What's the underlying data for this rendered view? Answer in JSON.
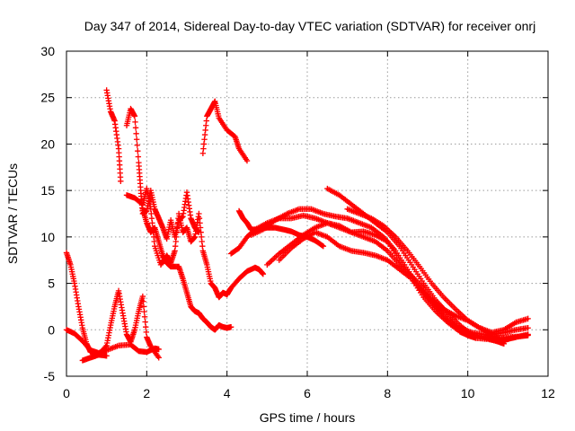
{
  "chart_data": {
    "type": "scatter",
    "title": "Day 347 of 2014, Sidereal Day-to-day VTEC variation (SDTVAR) for receiver onrj",
    "xlabel": "GPS time / hours",
    "ylabel": "SDTVAR / TECUs",
    "xlim": [
      0,
      12
    ],
    "ylim": [
      -5,
      30
    ],
    "xticks": [
      0,
      2,
      4,
      6,
      8,
      10,
      12
    ],
    "yticks": [
      -5,
      0,
      5,
      10,
      15,
      20,
      25,
      30
    ],
    "xtick_labels": [
      "0",
      "2",
      "4",
      "6",
      "8",
      "10",
      "12"
    ],
    "ytick_labels": [
      "-5",
      "0",
      "5",
      "10",
      "15",
      "20",
      "25",
      "30"
    ],
    "grid": true,
    "marker": "+",
    "color": "#ff0000",
    "series": [
      {
        "name": "s1",
        "points": [
          [
            0.0,
            8.3
          ],
          [
            0.1,
            7.0
          ],
          [
            0.2,
            5.0
          ],
          [
            0.3,
            2.5
          ],
          [
            0.4,
            0.2
          ],
          [
            0.5,
            -1.5
          ],
          [
            0.6,
            -2.4
          ],
          [
            0.8,
            -2.7
          ],
          [
            1.0,
            -2.8
          ]
        ]
      },
      {
        "name": "s2",
        "points": [
          [
            0.0,
            0.0
          ],
          [
            0.2,
            -0.4
          ],
          [
            0.4,
            -1.2
          ],
          [
            0.6,
            -2.2
          ],
          [
            0.8,
            -2.5
          ],
          [
            1.0,
            -2.2
          ],
          [
            1.3,
            -1.7
          ],
          [
            1.6,
            -1.6
          ],
          [
            1.8,
            -2.3
          ],
          [
            2.0,
            -2.4
          ],
          [
            2.2,
            -2.0
          ],
          [
            2.3,
            -2.1
          ]
        ]
      },
      {
        "name": "s3",
        "points": [
          [
            0.4,
            -3.3
          ],
          [
            0.6,
            -3.0
          ],
          [
            0.8,
            -2.7
          ],
          [
            1.0,
            -1.7
          ],
          [
            1.1,
            0.5
          ],
          [
            1.2,
            2.5
          ],
          [
            1.3,
            4.2
          ],
          [
            1.4,
            1.8
          ],
          [
            1.5,
            -0.5
          ],
          [
            1.6,
            -1.3
          ],
          [
            1.7,
            0.0
          ],
          [
            1.8,
            2.0
          ],
          [
            1.9,
            3.6
          ],
          [
            2.0,
            -0.8
          ],
          [
            2.1,
            -1.8
          ],
          [
            2.3,
            -3.0
          ]
        ]
      },
      {
        "name": "s4",
        "points": [
          [
            1.0,
            25.8
          ],
          [
            1.1,
            23.5
          ],
          [
            1.2,
            22.5
          ],
          [
            1.3,
            19.5
          ],
          [
            1.35,
            16.0
          ]
        ]
      },
      {
        "name": "s5",
        "points": [
          [
            1.5,
            22.0
          ],
          [
            1.6,
            23.8
          ],
          [
            1.7,
            23.0
          ],
          [
            1.8,
            18.0
          ],
          [
            1.85,
            15.0
          ],
          [
            1.9,
            12.5
          ],
          [
            2.0,
            12.8
          ],
          [
            2.1,
            15.0
          ],
          [
            2.2,
            13.0
          ],
          [
            2.3,
            12.0
          ],
          [
            2.4,
            11.0
          ],
          [
            2.5,
            9.8
          ],
          [
            2.6,
            11.8
          ],
          [
            2.7,
            10.0
          ],
          [
            2.8,
            11.8
          ],
          [
            2.9,
            12.2
          ],
          [
            3.0,
            14.8
          ],
          [
            3.1,
            12.0
          ],
          [
            3.2,
            11.0
          ],
          [
            3.3,
            10.5
          ]
        ]
      },
      {
        "name": "s6",
        "points": [
          [
            1.5,
            14.5
          ],
          [
            1.7,
            14.2
          ],
          [
            1.9,
            13.5
          ],
          [
            2.0,
            15.2
          ],
          [
            2.1,
            13.0
          ],
          [
            2.2,
            9.0
          ],
          [
            2.35,
            7.0
          ],
          [
            2.5,
            8.0
          ],
          [
            2.6,
            7.2
          ],
          [
            2.7,
            8.5
          ],
          [
            2.8,
            12.5
          ],
          [
            2.9,
            10.5
          ],
          [
            3.0,
            11.0
          ],
          [
            3.1,
            9.5
          ],
          [
            3.2,
            10.0
          ],
          [
            3.3,
            12.5
          ],
          [
            3.4,
            8.5
          ],
          [
            3.5,
            7.0
          ],
          [
            3.6,
            5.0
          ],
          [
            3.7,
            4.5
          ],
          [
            3.8,
            3.5
          ],
          [
            3.9,
            4.0
          ],
          [
            4.0,
            3.8
          ]
        ]
      },
      {
        "name": "s7",
        "points": [
          [
            1.9,
            13.0
          ],
          [
            2.0,
            11.5
          ],
          [
            2.1,
            10.5
          ],
          [
            2.2,
            11.0
          ],
          [
            2.3,
            9.5
          ],
          [
            2.4,
            8.0
          ],
          [
            2.5,
            7.2
          ],
          [
            2.6,
            6.8
          ],
          [
            2.8,
            6.8
          ],
          [
            2.9,
            5.5
          ],
          [
            3.0,
            4.0
          ],
          [
            3.1,
            2.5
          ],
          [
            3.2,
            2.0
          ],
          [
            3.3,
            1.8
          ],
          [
            3.4,
            1.2
          ],
          [
            3.5,
            0.8
          ],
          [
            3.6,
            0.3
          ],
          [
            3.7,
            0.0
          ],
          [
            3.8,
            0.5
          ],
          [
            3.9,
            0.3
          ],
          [
            4.0,
            0.2
          ],
          [
            4.1,
            0.3
          ]
        ]
      },
      {
        "name": "s8",
        "points": [
          [
            3.4,
            19.0
          ],
          [
            3.5,
            23.0
          ],
          [
            3.6,
            23.8
          ],
          [
            3.7,
            24.6
          ],
          [
            3.8,
            22.8
          ],
          [
            4.0,
            21.5
          ],
          [
            4.2,
            20.8
          ],
          [
            4.3,
            19.5
          ],
          [
            4.5,
            18.2
          ]
        ]
      },
      {
        "name": "s9",
        "points": [
          [
            4.3,
            12.8
          ],
          [
            4.4,
            12.0
          ],
          [
            4.5,
            11.5
          ],
          [
            4.6,
            10.8
          ],
          [
            4.8,
            10.8
          ],
          [
            5.0,
            11.0
          ],
          [
            5.2,
            11.0
          ],
          [
            5.4,
            10.8
          ],
          [
            5.6,
            10.6
          ],
          [
            5.8,
            10.2
          ],
          [
            6.0,
            10.0
          ],
          [
            6.2,
            9.6
          ],
          [
            6.4,
            9.0
          ]
        ]
      },
      {
        "name": "s10",
        "points": [
          [
            4.1,
            8.2
          ],
          [
            4.3,
            8.8
          ],
          [
            4.5,
            10.0
          ],
          [
            4.7,
            10.8
          ],
          [
            5.0,
            11.5
          ],
          [
            5.3,
            12.0
          ],
          [
            5.6,
            12.0
          ],
          [
            5.9,
            12.3
          ],
          [
            6.2,
            12.0
          ],
          [
            6.5,
            11.5
          ],
          [
            6.8,
            11.0
          ],
          [
            7.1,
            10.5
          ],
          [
            7.4,
            10.6
          ],
          [
            7.7,
            10.2
          ],
          [
            8.0,
            9.5
          ],
          [
            8.3,
            7.5
          ],
          [
            8.6,
            5.5
          ],
          [
            8.9,
            3.5
          ],
          [
            9.2,
            2.0
          ],
          [
            9.5,
            0.8
          ],
          [
            9.8,
            -0.2
          ],
          [
            10.0,
            -0.6
          ],
          [
            10.2,
            -0.9
          ],
          [
            10.5,
            -1.0
          ],
          [
            10.8,
            -1.3
          ],
          [
            11.0,
            -1.0
          ],
          [
            11.2,
            -0.8
          ],
          [
            11.5,
            -0.5
          ]
        ]
      },
      {
        "name": "s11",
        "points": [
          [
            4.6,
            10.2
          ],
          [
            4.9,
            10.8
          ],
          [
            5.2,
            11.8
          ],
          [
            5.5,
            12.5
          ],
          [
            5.8,
            13.0
          ],
          [
            6.1,
            13.0
          ],
          [
            6.4,
            12.5
          ],
          [
            6.7,
            12.2
          ],
          [
            7.0,
            12.0
          ],
          [
            7.3,
            11.5
          ],
          [
            7.6,
            11.0
          ],
          [
            7.9,
            10.0
          ],
          [
            8.2,
            8.5
          ],
          [
            8.5,
            6.5
          ],
          [
            8.8,
            4.5
          ],
          [
            9.1,
            3.2
          ],
          [
            9.4,
            2.2
          ],
          [
            9.7,
            1.5
          ],
          [
            10.0,
            1.0
          ],
          [
            10.3,
            0.2
          ],
          [
            10.6,
            -0.3
          ],
          [
            10.9,
            0.0
          ],
          [
            11.2,
            0.8
          ],
          [
            11.5,
            1.2
          ]
        ]
      },
      {
        "name": "s12",
        "points": [
          [
            4.9,
            6.0
          ],
          [
            4.8,
            6.5
          ],
          [
            4.7,
            6.7
          ],
          [
            4.5,
            6.3
          ],
          [
            4.3,
            5.5
          ],
          [
            4.1,
            4.5
          ],
          [
            4.0,
            3.8
          ]
        ]
      },
      {
        "name": "s13",
        "points": [
          [
            5.0,
            7.0
          ],
          [
            5.3,
            8.2
          ],
          [
            5.6,
            9.2
          ],
          [
            5.9,
            10.2
          ],
          [
            6.2,
            11.0
          ],
          [
            6.5,
            11.5
          ],
          [
            6.8,
            11.2
          ],
          [
            7.1,
            10.5
          ],
          [
            7.4,
            10.0
          ],
          [
            7.7,
            9.5
          ],
          [
            8.0,
            8.5
          ],
          [
            8.3,
            7.0
          ],
          [
            8.6,
            5.8
          ],
          [
            8.9,
            4.5
          ],
          [
            9.2,
            2.8
          ],
          [
            9.5,
            1.2
          ],
          [
            9.8,
            0.0
          ],
          [
            10.1,
            -0.5
          ],
          [
            10.4,
            -0.8
          ],
          [
            10.7,
            -1.2
          ],
          [
            10.9,
            -1.5
          ]
        ]
      },
      {
        "name": "s14",
        "points": [
          [
            5.3,
            7.5
          ],
          [
            5.6,
            8.8
          ],
          [
            5.9,
            9.8
          ],
          [
            6.2,
            10.5
          ],
          [
            6.5,
            10.0
          ],
          [
            6.8,
            9.0
          ],
          [
            7.1,
            8.5
          ],
          [
            7.4,
            8.3
          ],
          [
            7.7,
            8.0
          ],
          [
            8.0,
            7.5
          ],
          [
            8.3,
            6.5
          ],
          [
            8.6,
            5.5
          ],
          [
            8.9,
            4.0
          ],
          [
            9.2,
            2.5
          ],
          [
            9.5,
            1.0
          ],
          [
            9.8,
            0.2
          ],
          [
            10.1,
            -0.3
          ],
          [
            10.4,
            -0.5
          ],
          [
            10.7,
            -0.8
          ],
          [
            11.0,
            -1.0
          ]
        ]
      },
      {
        "name": "s15",
        "points": [
          [
            6.5,
            15.2
          ],
          [
            6.8,
            14.5
          ],
          [
            7.1,
            13.5
          ],
          [
            7.4,
            12.5
          ],
          [
            7.7,
            11.5
          ],
          [
            8.0,
            10.5
          ],
          [
            8.3,
            9.0
          ],
          [
            8.6,
            7.0
          ],
          [
            8.9,
            5.0
          ],
          [
            9.2,
            3.2
          ],
          [
            9.5,
            1.8
          ],
          [
            9.8,
            0.5
          ],
          [
            10.1,
            -0.5
          ],
          [
            10.4,
            -0.8
          ],
          [
            10.7,
            -1.0
          ],
          [
            11.0,
            -0.8
          ],
          [
            11.3,
            -0.7
          ],
          [
            11.5,
            -0.6
          ]
        ]
      },
      {
        "name": "s16",
        "points": [
          [
            7.0,
            13.0
          ],
          [
            7.3,
            12.5
          ],
          [
            7.6,
            12.0
          ],
          [
            7.9,
            11.2
          ],
          [
            8.2,
            10.0
          ],
          [
            8.5,
            8.5
          ],
          [
            8.8,
            6.8
          ],
          [
            9.1,
            5.0
          ],
          [
            9.4,
            3.5
          ],
          [
            9.7,
            2.2
          ],
          [
            10.0,
            1.0
          ],
          [
            10.3,
            0.2
          ],
          [
            10.6,
            -0.5
          ],
          [
            10.9,
            -0.3
          ],
          [
            11.2,
            0.0
          ],
          [
            11.5,
            0.2
          ]
        ]
      }
    ]
  }
}
